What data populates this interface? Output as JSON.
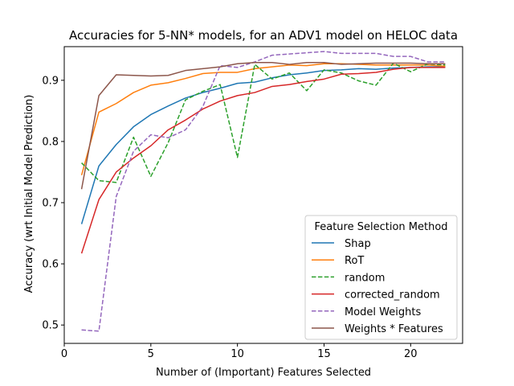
{
  "chart_data": {
    "type": "line",
    "title": "Accuracies for 5-NN* models, for an ADV1 model on HELOC data",
    "xlabel": "Number of (Important) Features Selected",
    "ylabel": "Accuracy (wrt Initial Model Prediction)",
    "xlim": [
      0,
      23
    ],
    "ylim": [
      0.47,
      0.955
    ],
    "xticks": [
      0,
      5,
      10,
      15,
      20
    ],
    "yticks": [
      0.5,
      0.6,
      0.7,
      0.8,
      0.9
    ],
    "xtick_labels": [
      "0",
      "5",
      "10",
      "15",
      "20"
    ],
    "ytick_labels": [
      "0.5",
      "0.6",
      "0.7",
      "0.8",
      "0.9"
    ],
    "grid": false,
    "legend": {
      "title": "Feature Selection Method",
      "placement": "lower right"
    },
    "x": [
      1,
      2,
      3,
      4,
      5,
      6,
      7,
      8,
      9,
      10,
      11,
      12,
      13,
      14,
      15,
      16,
      17,
      18,
      19,
      20,
      21,
      22
    ],
    "series": [
      {
        "name": "Shap",
        "color": "#1f77b4",
        "dash": "solid",
        "values": [
          0.665,
          0.76,
          0.795,
          0.824,
          0.844,
          0.858,
          0.871,
          0.88,
          0.887,
          0.895,
          0.897,
          0.904,
          0.909,
          0.912,
          0.916,
          0.917,
          0.919,
          0.918,
          0.92,
          0.921,
          0.922,
          0.922
        ]
      },
      {
        "name": "RoT",
        "color": "#ff7f0e",
        "dash": "solid",
        "values": [
          0.745,
          0.848,
          0.862,
          0.88,
          0.892,
          0.896,
          0.903,
          0.911,
          0.913,
          0.913,
          0.919,
          0.922,
          0.925,
          0.924,
          0.927,
          0.927,
          0.926,
          0.925,
          0.925,
          0.925,
          0.925,
          0.923
        ]
      },
      {
        "name": "random",
        "color": "#2ca02c",
        "dash": "dashed",
        "values": [
          0.765,
          0.736,
          0.733,
          0.807,
          0.743,
          0.798,
          0.868,
          0.882,
          0.893,
          0.774,
          0.926,
          0.902,
          0.912,
          0.883,
          0.917,
          0.912,
          0.899,
          0.892,
          0.928,
          0.914,
          0.927,
          0.925
        ]
      },
      {
        "name": "corrected_random",
        "color": "#d62728",
        "dash": "solid",
        "values": [
          0.617,
          0.705,
          0.75,
          0.773,
          0.793,
          0.819,
          0.835,
          0.853,
          0.866,
          0.875,
          0.88,
          0.89,
          0.893,
          0.898,
          0.902,
          0.91,
          0.911,
          0.913,
          0.918,
          0.921,
          0.921,
          0.921
        ]
      },
      {
        "name": "Model Weights",
        "color": "#9467bd",
        "dash": "dashed",
        "values": [
          0.492,
          0.49,
          0.71,
          0.784,
          0.811,
          0.806,
          0.819,
          0.857,
          0.924,
          0.921,
          0.93,
          0.941,
          0.943,
          0.945,
          0.947,
          0.944,
          0.944,
          0.944,
          0.939,
          0.939,
          0.93,
          0.93
        ]
      },
      {
        "name": "Weights * Features",
        "color": "#8c564b",
        "dash": "solid",
        "values": [
          0.722,
          0.875,
          0.909,
          0.908,
          0.907,
          0.908,
          0.916,
          0.919,
          0.922,
          0.927,
          0.929,
          0.929,
          0.926,
          0.929,
          0.929,
          0.926,
          0.927,
          0.928,
          0.928,
          0.928,
          0.927,
          0.927
        ]
      }
    ]
  }
}
